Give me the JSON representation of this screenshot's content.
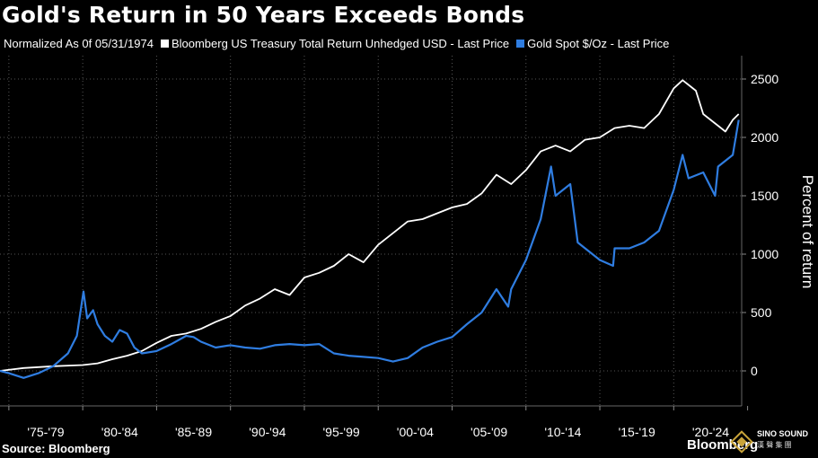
{
  "header": {
    "title": "Gold's Return in 50 Years Exceeds Bonds",
    "note": "Normalized As 0f 05/31/1974"
  },
  "footer": {
    "source": "Source: Bloomberg",
    "brand": "Bloomberg",
    "watermark": "SINO SOUND",
    "watermark_sub": "漢 聲 集 團"
  },
  "colors": {
    "background": "#000000",
    "grid": "#555555",
    "axis_text": "#ffffff",
    "bonds": "#ffffff",
    "gold": "#2f7de1"
  },
  "chart_data": {
    "type": "line",
    "title": "Gold's Return in 50 Years Exceeds Bonds",
    "ylabel": "Percent of return",
    "xlabel": "",
    "ylim": [
      -300,
      2700
    ],
    "xlim": [
      1974.4,
      2024.6
    ],
    "y_ticks": [
      0,
      500,
      1000,
      1500,
      2000,
      2500
    ],
    "x_tick_labels": [
      "'75-'79",
      "'80-'84",
      "'85-'89",
      "'90-'94",
      "'95-'99",
      "'00-'04",
      "'05-'09",
      "'10-'14",
      "'15-'19",
      "'20-'24"
    ],
    "x_ticks": [
      1975,
      1980,
      1985,
      1990,
      1995,
      2000,
      2005,
      2010,
      2015,
      2020,
      2025
    ],
    "grid": true,
    "y_axis_position": "right",
    "legend_placement": "top-left",
    "series": [
      {
        "name": "Bloomberg US Treasury Total Return Unhedged USD - Last Price",
        "color": "#ffffff",
        "x": [
          1974.4,
          1976,
          1978,
          1980,
          1981,
          1982,
          1983,
          1984,
          1985,
          1986,
          1987,
          1988,
          1989,
          1990,
          1991,
          1992,
          1993,
          1994,
          1995,
          1996,
          1997,
          1998,
          1999,
          2000,
          2001,
          2002,
          2003,
          2004,
          2005,
          2006,
          2007,
          2008,
          2009,
          2010,
          2011,
          2012,
          2013,
          2014,
          2015,
          2016,
          2017,
          2018,
          2019,
          2020,
          2020.6,
          2021,
          2021.5,
          2022,
          2022.5,
          2023,
          2023.5,
          2024,
          2024.4
        ],
        "values": [
          0,
          25,
          40,
          50,
          65,
          100,
          130,
          170,
          240,
          300,
          320,
          360,
          420,
          470,
          560,
          620,
          700,
          650,
          800,
          840,
          900,
          1000,
          930,
          1080,
          1180,
          1280,
          1300,
          1350,
          1400,
          1430,
          1520,
          1680,
          1600,
          1720,
          1880,
          1930,
          1880,
          1980,
          2000,
          2080,
          2100,
          2080,
          2200,
          2420,
          2490,
          2450,
          2400,
          2200,
          2150,
          2100,
          2050,
          2150,
          2200
        ]
      },
      {
        "name": "Gold Spot $/Oz - Last Price",
        "color": "#2f7de1",
        "x": [
          1974.4,
          1975,
          1976,
          1977,
          1978,
          1979,
          1979.6,
          1980.05,
          1980.3,
          1980.7,
          1981,
          1981.5,
          1982,
          1982.5,
          1983,
          1983.5,
          1984,
          1985,
          1986,
          1987,
          1987.5,
          1988,
          1989,
          1990,
          1991,
          1992,
          1993,
          1994,
          1995,
          1996,
          1997,
          1998,
          1999,
          2000,
          2001,
          2002,
          2003,
          2004,
          2005,
          2006,
          2007,
          2008,
          2008.8,
          2009,
          2010,
          2011,
          2011.7,
          2012,
          2013,
          2013.5,
          2014,
          2015,
          2015.9,
          2016,
          2017,
          2018,
          2019,
          2020,
          2020.6,
          2021,
          2022,
          2022.8,
          2023,
          2024,
          2024.4
        ],
        "values": [
          0,
          -20,
          -60,
          -20,
          40,
          150,
          300,
          680,
          450,
          520,
          400,
          300,
          250,
          350,
          320,
          200,
          150,
          170,
          230,
          300,
          290,
          250,
          200,
          220,
          200,
          190,
          220,
          230,
          220,
          230,
          150,
          130,
          120,
          110,
          80,
          110,
          200,
          250,
          290,
          400,
          500,
          700,
          550,
          700,
          950,
          1300,
          1750,
          1500,
          1600,
          1100,
          1050,
          950,
          900,
          1050,
          1050,
          1100,
          1200,
          1550,
          1850,
          1650,
          1700,
          1500,
          1750,
          1850,
          2150
        ]
      }
    ]
  }
}
